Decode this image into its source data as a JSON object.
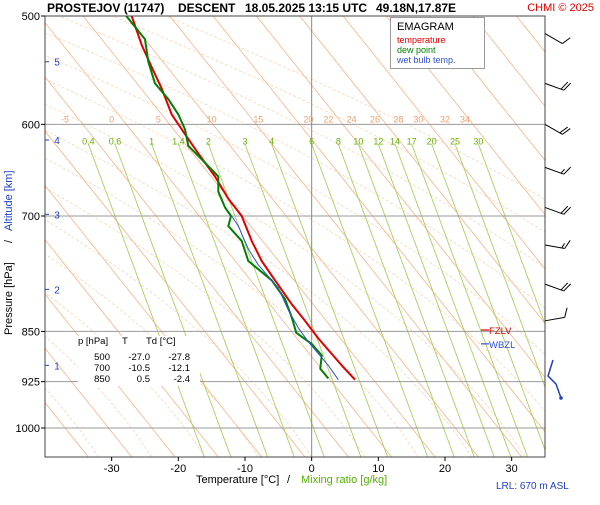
{
  "header": {
    "station": "PROSTEJOV (11747)",
    "phase": "DESCENT",
    "datetime": "18.05.2025 13:15 UTC",
    "coords": "49.18N,17.87E",
    "copyright": "CHMI © 2025"
  },
  "legend": {
    "title": "EMAGRAM",
    "items": [
      {
        "label": "temperature",
        "color": "#e00000"
      },
      {
        "label": "dew point",
        "color": "#008000"
      },
      {
        "label": "wet bulb temp.",
        "color": "#3050d0"
      }
    ]
  },
  "table": {
    "headers": [
      "p [hPa]",
      "T",
      "Td [°C]"
    ],
    "rows": [
      [
        "500",
        "-27.0",
        "-27.8"
      ],
      [
        "700",
        "-10.5",
        "-12.1"
      ],
      [
        "850",
        "0.5",
        "-2.4"
      ]
    ]
  },
  "levels": {
    "fzlv": {
      "label": "FZLV",
      "p": 848,
      "color": "#e00000"
    },
    "wbzl": {
      "label": "WBZL",
      "p": 868,
      "color": "#3050d0"
    }
  },
  "lrl": "LRL: 670 m ASL",
  "chart_data": {
    "type": "line",
    "xlabel": "Temperature [°C]",
    "xlabel_sep": "/",
    "xlabel2": "Mixing ratio [g/kg]",
    "ylabel": "Pressure [hPa]",
    "ylabel_sep": "/",
    "ylabel2": "Altitude [km]",
    "xlim": [
      -40,
      35
    ],
    "ylim": [
      1050,
      500
    ],
    "y_log": true,
    "x_ticks": [
      -30,
      -20,
      -10,
      0,
      10,
      20,
      30
    ],
    "p_ticks": [
      500,
      600,
      700,
      850,
      925,
      1000
    ],
    "alt_ticks": [
      {
        "km": "5",
        "p": 540
      },
      {
        "km": "4",
        "p": 616
      },
      {
        "km": "3",
        "p": 698
      },
      {
        "km": "2",
        "p": 792
      },
      {
        "km": "1",
        "p": 900
      }
    ],
    "theta_labels": [
      {
        "t": "-5",
        "x": -37
      },
      {
        "t": "0",
        "x": -30
      },
      {
        "t": "5",
        "x": -23
      },
      {
        "t": "10",
        "x": -15
      },
      {
        "t": "15",
        "x": -8
      },
      {
        "t": "20",
        "x": -0.5
      },
      {
        "t": "22",
        "x": 2.5
      },
      {
        "t": "24",
        "x": 6
      },
      {
        "t": "26",
        "x": 9.5
      },
      {
        "t": "28",
        "x": 13
      },
      {
        "t": "30",
        "x": 16
      },
      {
        "t": "32",
        "x": 20
      },
      {
        "t": "34",
        "x": 23
      }
    ],
    "mixing_ratio": [
      {
        "w": "0.4",
        "x": -33.5
      },
      {
        "w": "0.6",
        "x": -29.5
      },
      {
        "w": "1",
        "x": -24
      },
      {
        "w": "1.4",
        "x": -20
      },
      {
        "w": "2",
        "x": -15.5
      },
      {
        "w": "3",
        "x": -10
      },
      {
        "w": "4",
        "x": -6
      },
      {
        "w": "6",
        "x": 0
      },
      {
        "w": "8",
        "x": 4
      },
      {
        "w": "10",
        "x": 7
      },
      {
        "w": "12",
        "x": 10
      },
      {
        "w": "14",
        "x": 12.5
      },
      {
        "w": "17",
        "x": 15
      },
      {
        "w": "20",
        "x": 18
      },
      {
        "w": "25",
        "x": 21.5
      },
      {
        "w": "30",
        "x": 25
      }
    ],
    "series": [
      {
        "name": "temperature",
        "color": "#e00000",
        "points": [
          [
            6.5,
            922
          ],
          [
            4.5,
            900
          ],
          [
            1,
            860
          ],
          [
            -1,
            835
          ],
          [
            -3,
            812
          ],
          [
            -5.5,
            780
          ],
          [
            -7.5,
            755
          ],
          [
            -9,
            730
          ],
          [
            -10.5,
            700
          ],
          [
            -12.5,
            680
          ],
          [
            -14.5,
            655
          ],
          [
            -17,
            630
          ],
          [
            -19,
            610
          ],
          [
            -21,
            590
          ],
          [
            -22.5,
            565
          ],
          [
            -24,
            545
          ],
          [
            -25.5,
            525
          ],
          [
            -27,
            500
          ]
        ]
      },
      {
        "name": "dew point",
        "color": "#008000",
        "points": [
          [
            2.5,
            920
          ],
          [
            1.3,
            905
          ],
          [
            1.5,
            885
          ],
          [
            0,
            868
          ],
          [
            -2.3,
            852
          ],
          [
            -3,
            830
          ],
          [
            -4,
            805
          ],
          [
            -6,
            780
          ],
          [
            -9.5,
            755
          ],
          [
            -10.5,
            730
          ],
          [
            -12.5,
            712
          ],
          [
            -12.1,
            700
          ],
          [
            -13,
            690
          ],
          [
            -14,
            672
          ],
          [
            -14,
            655
          ],
          [
            -16,
            640
          ],
          [
            -18.5,
            622
          ],
          [
            -19,
            605
          ],
          [
            -20,
            590
          ],
          [
            -21.5,
            575
          ],
          [
            -23.5,
            560
          ],
          [
            -24.5,
            540
          ],
          [
            -25,
            520
          ],
          [
            -27.8,
            500
          ]
        ]
      },
      {
        "name": "wet bulb temp.",
        "color": "#3050d0",
        "points": [
          [
            4,
            922
          ],
          [
            2.5,
            900
          ],
          [
            -0.5,
            865
          ],
          [
            -2,
            845
          ],
          [
            -3.5,
            820
          ],
          [
            -5,
            790
          ],
          [
            -8,
            760
          ],
          [
            -9.5,
            740
          ],
          [
            -11,
            712
          ],
          [
            -12,
            700
          ]
        ]
      }
    ],
    "wind_barbs": [
      {
        "p": 515,
        "dir": 300,
        "kt": 10
      },
      {
        "p": 560,
        "dir": 290,
        "kt": 20
      },
      {
        "p": 600,
        "dir": 300,
        "kt": 20
      },
      {
        "p": 645,
        "dir": 290,
        "kt": 15
      },
      {
        "p": 690,
        "dir": 290,
        "kt": 20
      },
      {
        "p": 735,
        "dir": 280,
        "kt": 15
      },
      {
        "p": 785,
        "dir": 290,
        "kt": 20
      },
      {
        "p": 835,
        "dir": 260,
        "kt": 10
      }
    ],
    "grid": true
  }
}
